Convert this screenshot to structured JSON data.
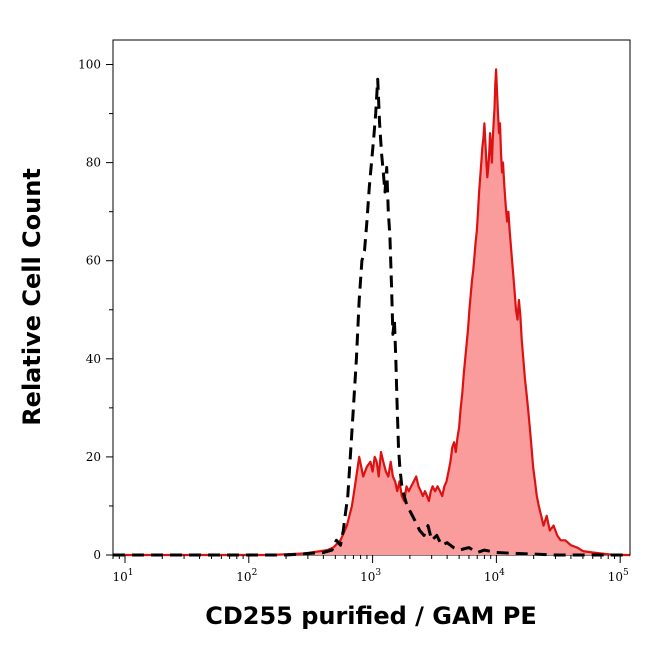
{
  "chart_data": {
    "type": "area",
    "title": "",
    "xlabel": "CD255 purified / GAM PE",
    "ylabel": "Relative Cell Count",
    "x_scale": "log",
    "xlim": [
      8,
      120000
    ],
    "ylim": [
      0,
      105
    ],
    "grid": false,
    "legend": "none",
    "x_ticks": [
      {
        "value": 10,
        "base": "10",
        "exp": "1"
      },
      {
        "value": 100,
        "base": "10",
        "exp": "2"
      },
      {
        "value": 1000,
        "base": "10",
        "exp": "3"
      },
      {
        "value": 10000,
        "base": "10",
        "exp": "4"
      },
      {
        "value": 100000,
        "base": "10",
        "exp": "5"
      }
    ],
    "y_ticks": [
      {
        "value": 0,
        "label": "0"
      },
      {
        "value": 20,
        "label": "20"
      },
      {
        "value": 40,
        "label": "40"
      },
      {
        "value": 60,
        "label": "60"
      },
      {
        "value": 80,
        "label": "80"
      },
      {
        "value": 100,
        "label": "100"
      }
    ],
    "series": [
      {
        "style": "dashed-black",
        "color": "#000000",
        "points": [
          [
            8,
            0
          ],
          [
            200,
            0
          ],
          [
            300,
            0.3
          ],
          [
            400,
            0.5
          ],
          [
            470,
            1
          ],
          [
            510,
            3
          ],
          [
            550,
            2
          ],
          [
            580,
            5
          ],
          [
            600,
            8
          ],
          [
            630,
            12
          ],
          [
            660,
            20
          ],
          [
            700,
            30
          ],
          [
            740,
            40
          ],
          [
            780,
            52
          ],
          [
            820,
            60
          ],
          [
            860,
            62
          ],
          [
            900,
            68
          ],
          [
            940,
            75
          ],
          [
            980,
            80
          ],
          [
            1020,
            85
          ],
          [
            1060,
            90
          ],
          [
            1100,
            97
          ],
          [
            1140,
            88
          ],
          [
            1180,
            82
          ],
          [
            1220,
            78
          ],
          [
            1260,
            74
          ],
          [
            1300,
            79
          ],
          [
            1340,
            70
          ],
          [
            1380,
            65
          ],
          [
            1420,
            55
          ],
          [
            1460,
            45
          ],
          [
            1500,
            48
          ],
          [
            1540,
            40
          ],
          [
            1580,
            30
          ],
          [
            1620,
            22
          ],
          [
            1660,
            18
          ],
          [
            1720,
            14
          ],
          [
            1800,
            12
          ],
          [
            1900,
            10
          ],
          [
            2000,
            9
          ],
          [
            2200,
            7
          ],
          [
            2400,
            5
          ],
          [
            2600,
            4
          ],
          [
            2800,
            6
          ],
          [
            3000,
            3
          ],
          [
            3300,
            4
          ],
          [
            3600,
            2
          ],
          [
            4000,
            2.5
          ],
          [
            4500,
            1.5
          ],
          [
            5000,
            1
          ],
          [
            6000,
            1.5
          ],
          [
            7000,
            0.5
          ],
          [
            8000,
            1
          ],
          [
            10000,
            0.5
          ],
          [
            15000,
            0.3
          ],
          [
            30000,
            0
          ],
          [
            120000,
            0
          ]
        ]
      },
      {
        "style": "filled-red",
        "color": "#dd1111",
        "fill": "#fa9c9c",
        "points": [
          [
            8,
            0
          ],
          [
            150,
            0
          ],
          [
            280,
            0.3
          ],
          [
            380,
            0.8
          ],
          [
            430,
            1
          ],
          [
            480,
            1.5
          ],
          [
            550,
            3
          ],
          [
            620,
            6
          ],
          [
            680,
            10
          ],
          [
            720,
            14
          ],
          [
            780,
            20
          ],
          [
            840,
            16
          ],
          [
            900,
            18
          ],
          [
            960,
            19
          ],
          [
            1000,
            17
          ],
          [
            1040,
            20
          ],
          [
            1080,
            19
          ],
          [
            1120,
            16
          ],
          [
            1170,
            21
          ],
          [
            1220,
            19
          ],
          [
            1280,
            17
          ],
          [
            1340,
            16
          ],
          [
            1400,
            19
          ],
          [
            1460,
            16
          ],
          [
            1520,
            15
          ],
          [
            1580,
            13
          ],
          [
            1650,
            15
          ],
          [
            1720,
            12
          ],
          [
            1800,
            11
          ],
          [
            1880,
            14
          ],
          [
            1960,
            13
          ],
          [
            2050,
            14
          ],
          [
            2150,
            15
          ],
          [
            2250,
            16
          ],
          [
            2350,
            14
          ],
          [
            2450,
            13
          ],
          [
            2550,
            12
          ],
          [
            2650,
            13
          ],
          [
            2750,
            12
          ],
          [
            2850,
            11
          ],
          [
            2950,
            13
          ],
          [
            3050,
            14
          ],
          [
            3200,
            13
          ],
          [
            3350,
            14
          ],
          [
            3500,
            13
          ],
          [
            3650,
            12
          ],
          [
            3800,
            14
          ],
          [
            3950,
            15
          ],
          [
            4100,
            17
          ],
          [
            4250,
            19
          ],
          [
            4400,
            22
          ],
          [
            4550,
            23
          ],
          [
            4700,
            21
          ],
          [
            4850,
            24
          ],
          [
            5000,
            26
          ],
          [
            5150,
            30
          ],
          [
            5300,
            33
          ],
          [
            5450,
            37
          ],
          [
            5600,
            40
          ],
          [
            5750,
            43
          ],
          [
            5900,
            46
          ],
          [
            6050,
            50
          ],
          [
            6200,
            53
          ],
          [
            6350,
            56
          ],
          [
            6500,
            58
          ],
          [
            6650,
            61
          ],
          [
            6800,
            64
          ],
          [
            6950,
            66
          ],
          [
            7100,
            70
          ],
          [
            7250,
            74
          ],
          [
            7400,
            77
          ],
          [
            7550,
            80
          ],
          [
            7700,
            83
          ],
          [
            7850,
            85
          ],
          [
            8000,
            88
          ],
          [
            8150,
            84
          ],
          [
            8300,
            80
          ],
          [
            8450,
            77
          ],
          [
            8600,
            79
          ],
          [
            8750,
            82
          ],
          [
            8900,
            86
          ],
          [
            9050,
            83
          ],
          [
            9200,
            80
          ],
          [
            9350,
            85
          ],
          [
            9500,
            88
          ],
          [
            9650,
            91
          ],
          [
            9800,
            96
          ],
          [
            9950,
            99
          ],
          [
            10100,
            95
          ],
          [
            10300,
            90
          ],
          [
            10500,
            86
          ],
          [
            10700,
            88
          ],
          [
            10900,
            82
          ],
          [
            11100,
            78
          ],
          [
            11300,
            80
          ],
          [
            11600,
            75
          ],
          [
            11900,
            71
          ],
          [
            12200,
            68
          ],
          [
            12500,
            70
          ],
          [
            12800,
            66
          ],
          [
            13100,
            63
          ],
          [
            13400,
            60
          ],
          [
            13700,
            57
          ],
          [
            14000,
            54
          ],
          [
            14400,
            50
          ],
          [
            14800,
            48
          ],
          [
            15200,
            52
          ],
          [
            15600,
            49
          ],
          [
            16000,
            44
          ],
          [
            16500,
            40
          ],
          [
            17000,
            36
          ],
          [
            17500,
            33
          ],
          [
            18000,
            30
          ],
          [
            18600,
            26
          ],
          [
            19200,
            22
          ],
          [
            19800,
            18
          ],
          [
            20500,
            15
          ],
          [
            21200,
            12
          ],
          [
            22000,
            10
          ],
          [
            23000,
            8
          ],
          [
            24000,
            6
          ],
          [
            25500,
            8
          ],
          [
            27000,
            5
          ],
          [
            29000,
            6
          ],
          [
            31000,
            4
          ],
          [
            33000,
            3
          ],
          [
            36000,
            3
          ],
          [
            40000,
            2
          ],
          [
            45000,
            1.5
          ],
          [
            50000,
            0.8
          ],
          [
            60000,
            0.5
          ],
          [
            70000,
            0.3
          ],
          [
            90000,
            0
          ],
          [
            120000,
            0
          ]
        ]
      }
    ]
  }
}
